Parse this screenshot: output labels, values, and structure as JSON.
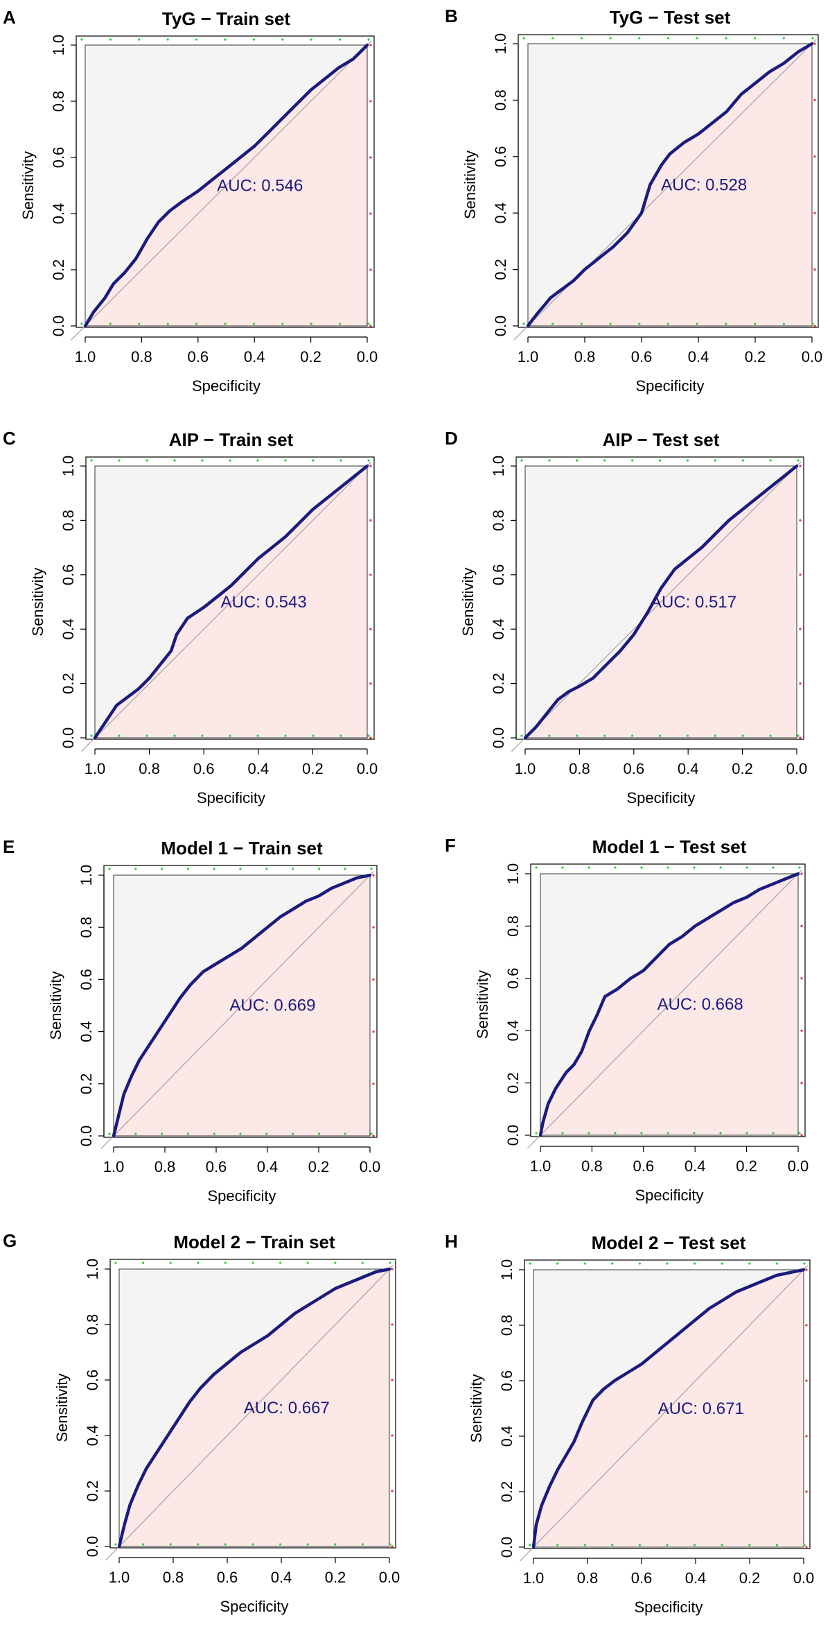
{
  "chart_data": [
    {
      "panel_label": "A",
      "type": "line",
      "title": "TyG − Train set",
      "xlabel": "Specificity",
      "ylabel": "Sensitivity",
      "xlim": [
        1.0,
        0.0
      ],
      "ylim": [
        0.0,
        1.0
      ],
      "x_ticks": [
        "1.0",
        "0.8",
        "0.6",
        "0.4",
        "0.2",
        "0.0"
      ],
      "y_ticks": [
        "0.0",
        "0.2",
        "0.4",
        "0.6",
        "0.8",
        "1.0"
      ],
      "auc_label": "AUC: 0.546",
      "series": [
        {
          "name": "ROC",
          "specificity": [
            1.0,
            0.97,
            0.93,
            0.9,
            0.86,
            0.82,
            0.78,
            0.74,
            0.7,
            0.66,
            0.6,
            0.55,
            0.5,
            0.45,
            0.4,
            0.35,
            0.3,
            0.25,
            0.2,
            0.15,
            0.1,
            0.05,
            0.02,
            0.0
          ],
          "sensitivity": [
            0.0,
            0.05,
            0.1,
            0.15,
            0.19,
            0.24,
            0.31,
            0.37,
            0.41,
            0.44,
            0.48,
            0.52,
            0.56,
            0.6,
            0.64,
            0.69,
            0.74,
            0.79,
            0.84,
            0.88,
            0.92,
            0.95,
            0.98,
            1.0
          ]
        }
      ]
    },
    {
      "panel_label": "B",
      "type": "line",
      "title": "TyG − Test set",
      "xlabel": "Specificity",
      "ylabel": "Sensitivity",
      "xlim": [
        1.0,
        0.0
      ],
      "ylim": [
        0.0,
        1.0
      ],
      "x_ticks": [
        "1.0",
        "0.8",
        "0.6",
        "0.4",
        "0.2",
        "0.0"
      ],
      "y_ticks": [
        "0.0",
        "0.2",
        "0.4",
        "0.6",
        "0.8",
        "1.0"
      ],
      "auc_label": "AUC: 0.528",
      "series": [
        {
          "name": "ROC",
          "specificity": [
            1.0,
            0.97,
            0.92,
            0.88,
            0.84,
            0.8,
            0.75,
            0.7,
            0.65,
            0.6,
            0.57,
            0.53,
            0.5,
            0.45,
            0.4,
            0.35,
            0.3,
            0.25,
            0.2,
            0.15,
            0.1,
            0.05,
            0.0
          ],
          "sensitivity": [
            0.0,
            0.04,
            0.1,
            0.13,
            0.16,
            0.2,
            0.24,
            0.28,
            0.33,
            0.4,
            0.5,
            0.57,
            0.61,
            0.65,
            0.68,
            0.72,
            0.76,
            0.82,
            0.86,
            0.9,
            0.93,
            0.97,
            1.0
          ]
        }
      ]
    },
    {
      "panel_label": "C",
      "type": "line",
      "title": "AIP − Train set",
      "xlabel": "Specificity",
      "ylabel": "Sensitivity",
      "xlim": [
        1.0,
        0.0
      ],
      "ylim": [
        0.0,
        1.0
      ],
      "x_ticks": [
        "1.0",
        "0.8",
        "0.6",
        "0.4",
        "0.2",
        "0.0"
      ],
      "y_ticks": [
        "0.0",
        "0.2",
        "0.4",
        "0.6",
        "0.8",
        "1.0"
      ],
      "auc_label": "AUC: 0.543",
      "series": [
        {
          "name": "ROC",
          "specificity": [
            1.0,
            0.96,
            0.92,
            0.88,
            0.84,
            0.8,
            0.76,
            0.72,
            0.7,
            0.66,
            0.6,
            0.55,
            0.5,
            0.45,
            0.4,
            0.35,
            0.3,
            0.25,
            0.2,
            0.15,
            0.1,
            0.05,
            0.0
          ],
          "sensitivity": [
            0.0,
            0.06,
            0.12,
            0.15,
            0.18,
            0.22,
            0.27,
            0.32,
            0.38,
            0.44,
            0.48,
            0.52,
            0.56,
            0.61,
            0.66,
            0.7,
            0.74,
            0.79,
            0.84,
            0.88,
            0.92,
            0.96,
            1.0
          ]
        }
      ]
    },
    {
      "panel_label": "D",
      "type": "line",
      "title": "AIP − Test set",
      "xlabel": "Specificity",
      "ylabel": "Sensitivity",
      "xlim": [
        1.0,
        0.0
      ],
      "ylim": [
        0.0,
        1.0
      ],
      "x_ticks": [
        "1.0",
        "0.8",
        "0.6",
        "0.4",
        "0.2",
        "0.0"
      ],
      "y_ticks": [
        "0.0",
        "0.2",
        "0.4",
        "0.6",
        "0.8",
        "1.0"
      ],
      "auc_label": "AUC: 0.517",
      "series": [
        {
          "name": "ROC",
          "specificity": [
            1.0,
            0.96,
            0.92,
            0.88,
            0.84,
            0.8,
            0.75,
            0.7,
            0.65,
            0.6,
            0.55,
            0.5,
            0.45,
            0.4,
            0.35,
            0.3,
            0.25,
            0.2,
            0.15,
            0.1,
            0.05,
            0.0
          ],
          "sensitivity": [
            0.0,
            0.04,
            0.09,
            0.14,
            0.17,
            0.19,
            0.22,
            0.27,
            0.32,
            0.38,
            0.46,
            0.55,
            0.62,
            0.66,
            0.7,
            0.75,
            0.8,
            0.84,
            0.88,
            0.92,
            0.96,
            1.0
          ]
        }
      ]
    },
    {
      "panel_label": "E",
      "type": "line",
      "title": "Model 1 − Train set",
      "xlabel": "Specificity",
      "ylabel": "Sensitivity",
      "xlim": [
        1.0,
        0.0
      ],
      "ylim": [
        0.0,
        1.0
      ],
      "x_ticks": [
        "1.0",
        "0.8",
        "0.6",
        "0.4",
        "0.2",
        "0.0"
      ],
      "y_ticks": [
        "0.0",
        "0.2",
        "0.4",
        "0.6",
        "0.8",
        "1.0"
      ],
      "auc_label": "AUC: 0.669",
      "series": [
        {
          "name": "ROC",
          "specificity": [
            1.0,
            0.98,
            0.96,
            0.93,
            0.9,
            0.86,
            0.82,
            0.78,
            0.74,
            0.7,
            0.65,
            0.6,
            0.55,
            0.5,
            0.45,
            0.4,
            0.35,
            0.3,
            0.25,
            0.2,
            0.15,
            0.1,
            0.05,
            0.0
          ],
          "sensitivity": [
            0.0,
            0.08,
            0.16,
            0.23,
            0.29,
            0.35,
            0.41,
            0.47,
            0.53,
            0.58,
            0.63,
            0.66,
            0.69,
            0.72,
            0.76,
            0.8,
            0.84,
            0.87,
            0.9,
            0.92,
            0.95,
            0.97,
            0.99,
            1.0
          ]
        }
      ]
    },
    {
      "panel_label": "F",
      "type": "line",
      "title": "Model 1 − Test set",
      "xlabel": "Specificity",
      "ylabel": "Sensitivity",
      "xlim": [
        1.0,
        0.0
      ],
      "ylim": [
        0.0,
        1.0
      ],
      "x_ticks": [
        "1.0",
        "0.8",
        "0.6",
        "0.4",
        "0.2",
        "0.0"
      ],
      "y_ticks": [
        "0.0",
        "0.2",
        "0.4",
        "0.6",
        "0.8",
        "1.0"
      ],
      "auc_label": "AUC: 0.668",
      "series": [
        {
          "name": "ROC",
          "specificity": [
            1.0,
            0.99,
            0.97,
            0.94,
            0.9,
            0.87,
            0.84,
            0.81,
            0.78,
            0.75,
            0.7,
            0.65,
            0.6,
            0.55,
            0.5,
            0.45,
            0.4,
            0.35,
            0.3,
            0.25,
            0.2,
            0.15,
            0.1,
            0.05,
            0.0
          ],
          "sensitivity": [
            0.0,
            0.05,
            0.12,
            0.18,
            0.24,
            0.27,
            0.32,
            0.4,
            0.46,
            0.53,
            0.56,
            0.6,
            0.63,
            0.68,
            0.73,
            0.76,
            0.8,
            0.83,
            0.86,
            0.89,
            0.91,
            0.94,
            0.96,
            0.98,
            1.0
          ]
        }
      ]
    },
    {
      "panel_label": "G",
      "type": "line",
      "title": "Model 2 − Train set",
      "xlabel": "Specificity",
      "ylabel": "Sensitivity",
      "xlim": [
        1.0,
        0.0
      ],
      "ylim": [
        0.0,
        1.0
      ],
      "x_ticks": [
        "1.0",
        "0.8",
        "0.6",
        "0.4",
        "0.2",
        "0.0"
      ],
      "y_ticks": [
        "0.0",
        "0.2",
        "0.4",
        "0.6",
        "0.8",
        "1.0"
      ],
      "auc_label": "AUC: 0.667",
      "series": [
        {
          "name": "ROC",
          "specificity": [
            1.0,
            0.98,
            0.96,
            0.93,
            0.9,
            0.86,
            0.82,
            0.78,
            0.74,
            0.7,
            0.65,
            0.6,
            0.55,
            0.5,
            0.45,
            0.4,
            0.35,
            0.3,
            0.25,
            0.2,
            0.15,
            0.1,
            0.05,
            0.0
          ],
          "sensitivity": [
            0.0,
            0.08,
            0.15,
            0.22,
            0.28,
            0.34,
            0.4,
            0.46,
            0.52,
            0.57,
            0.62,
            0.66,
            0.7,
            0.73,
            0.76,
            0.8,
            0.84,
            0.87,
            0.9,
            0.93,
            0.95,
            0.97,
            0.99,
            1.0
          ]
        }
      ]
    },
    {
      "panel_label": "H",
      "type": "line",
      "title": "Model 2 − Test set",
      "xlabel": "Specificity",
      "ylabel": "Sensitivity",
      "xlim": [
        1.0,
        0.0
      ],
      "ylim": [
        0.0,
        1.0
      ],
      "x_ticks": [
        "1.0",
        "0.8",
        "0.6",
        "0.4",
        "0.2",
        "0.0"
      ],
      "y_ticks": [
        "0.0",
        "0.2",
        "0.4",
        "0.6",
        "0.8",
        "1.0"
      ],
      "auc_label": "AUC: 0.671",
      "series": [
        {
          "name": "ROC",
          "specificity": [
            1.0,
            0.99,
            0.97,
            0.94,
            0.91,
            0.88,
            0.85,
            0.82,
            0.78,
            0.74,
            0.7,
            0.65,
            0.6,
            0.55,
            0.5,
            0.45,
            0.4,
            0.35,
            0.3,
            0.25,
            0.2,
            0.15,
            0.1,
            0.05,
            0.0
          ],
          "sensitivity": [
            0.0,
            0.08,
            0.15,
            0.22,
            0.28,
            0.33,
            0.38,
            0.45,
            0.53,
            0.57,
            0.6,
            0.63,
            0.66,
            0.7,
            0.74,
            0.78,
            0.82,
            0.86,
            0.89,
            0.92,
            0.94,
            0.96,
            0.98,
            0.99,
            1.0
          ]
        }
      ]
    }
  ],
  "colors": {
    "roc_line": "#1b1b7d",
    "auc_text": "#1b1b7d",
    "fill_under": "#fde8e8",
    "fill_over": "#f4f4f4",
    "diagonal": "#a8a8a8",
    "axis": "#000000",
    "dot_green": "#2ecc40",
    "dot_red": "#e03030"
  }
}
